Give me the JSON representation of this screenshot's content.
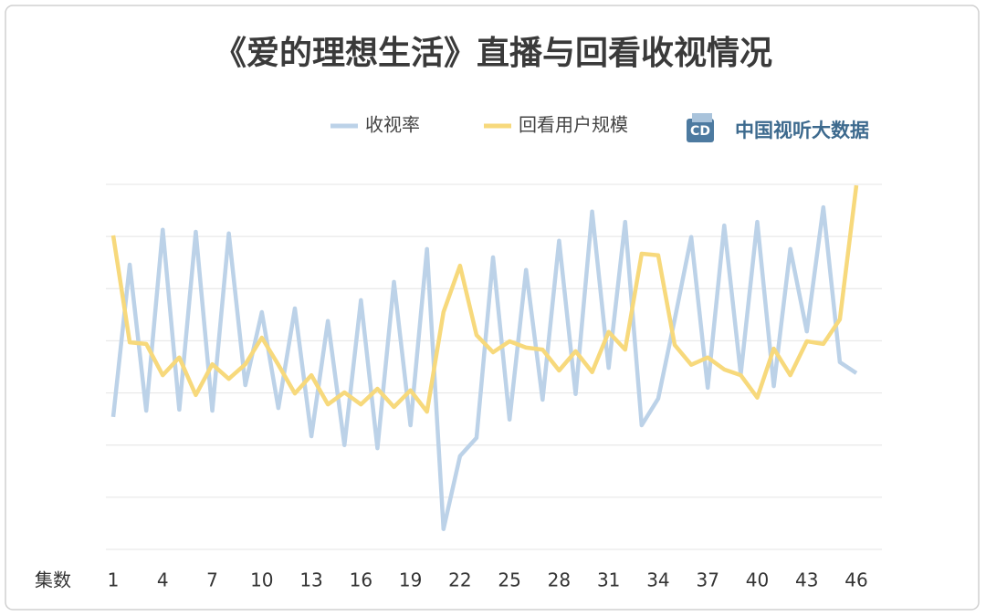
{
  "chart_data": {
    "type": "line",
    "title": "《爱的理想生活》直播与回看收视情况",
    "source": "中国视听大数据",
    "x_label": "集数",
    "categories": [
      1,
      null,
      null,
      4,
      null,
      null,
      7,
      null,
      null,
      10,
      null,
      null,
      13,
      null,
      null,
      16,
      null,
      null,
      19,
      null,
      null,
      22,
      null,
      null,
      25,
      null,
      null,
      28,
      null,
      null,
      31,
      null,
      null,
      34,
      null,
      null,
      37,
      null,
      null,
      40,
      null,
      null,
      43,
      null,
      null,
      46
    ],
    "series": [
      {
        "name": "收视率",
        "color": "#bcd2e8",
        "values": [
          2.54,
          5.46,
          2.66,
          6.13,
          2.68,
          6.09,
          2.66,
          6.06,
          3.15,
          4.55,
          2.71,
          4.62,
          2.17,
          4.38,
          2.0,
          4.78,
          1.94,
          5.13,
          2.38,
          5.76,
          0.39,
          1.79,
          2.14,
          5.6,
          2.49,
          5.36,
          2.87,
          5.92,
          2.98,
          6.48,
          3.48,
          6.28,
          2.38,
          2.89,
          4.41,
          5.99,
          3.1,
          6.21,
          3.36,
          6.28,
          3.13,
          5.76,
          4.18,
          6.56,
          3.59,
          3.38
        ]
      },
      {
        "name": "回看用户规模",
        "color": "#f7d97c",
        "values": [
          6.02,
          3.97,
          3.94,
          3.34,
          3.68,
          2.96,
          3.55,
          3.27,
          3.55,
          4.06,
          3.54,
          2.99,
          3.34,
          2.78,
          3.01,
          2.78,
          3.08,
          2.73,
          3.05,
          2.64,
          4.55,
          5.44,
          4.11,
          3.78,
          3.99,
          3.87,
          3.83,
          3.43,
          3.8,
          3.4,
          4.17,
          3.83,
          5.67,
          5.64,
          3.92,
          3.54,
          3.68,
          3.45,
          3.34,
          2.91,
          3.85,
          3.34,
          3.99,
          3.94,
          4.41,
          6.98
        ]
      }
    ],
    "ylim": [
      0,
      7
    ],
    "yticks": [
      0,
      1,
      2,
      3,
      4,
      5,
      6,
      7
    ],
    "grid": true
  }
}
